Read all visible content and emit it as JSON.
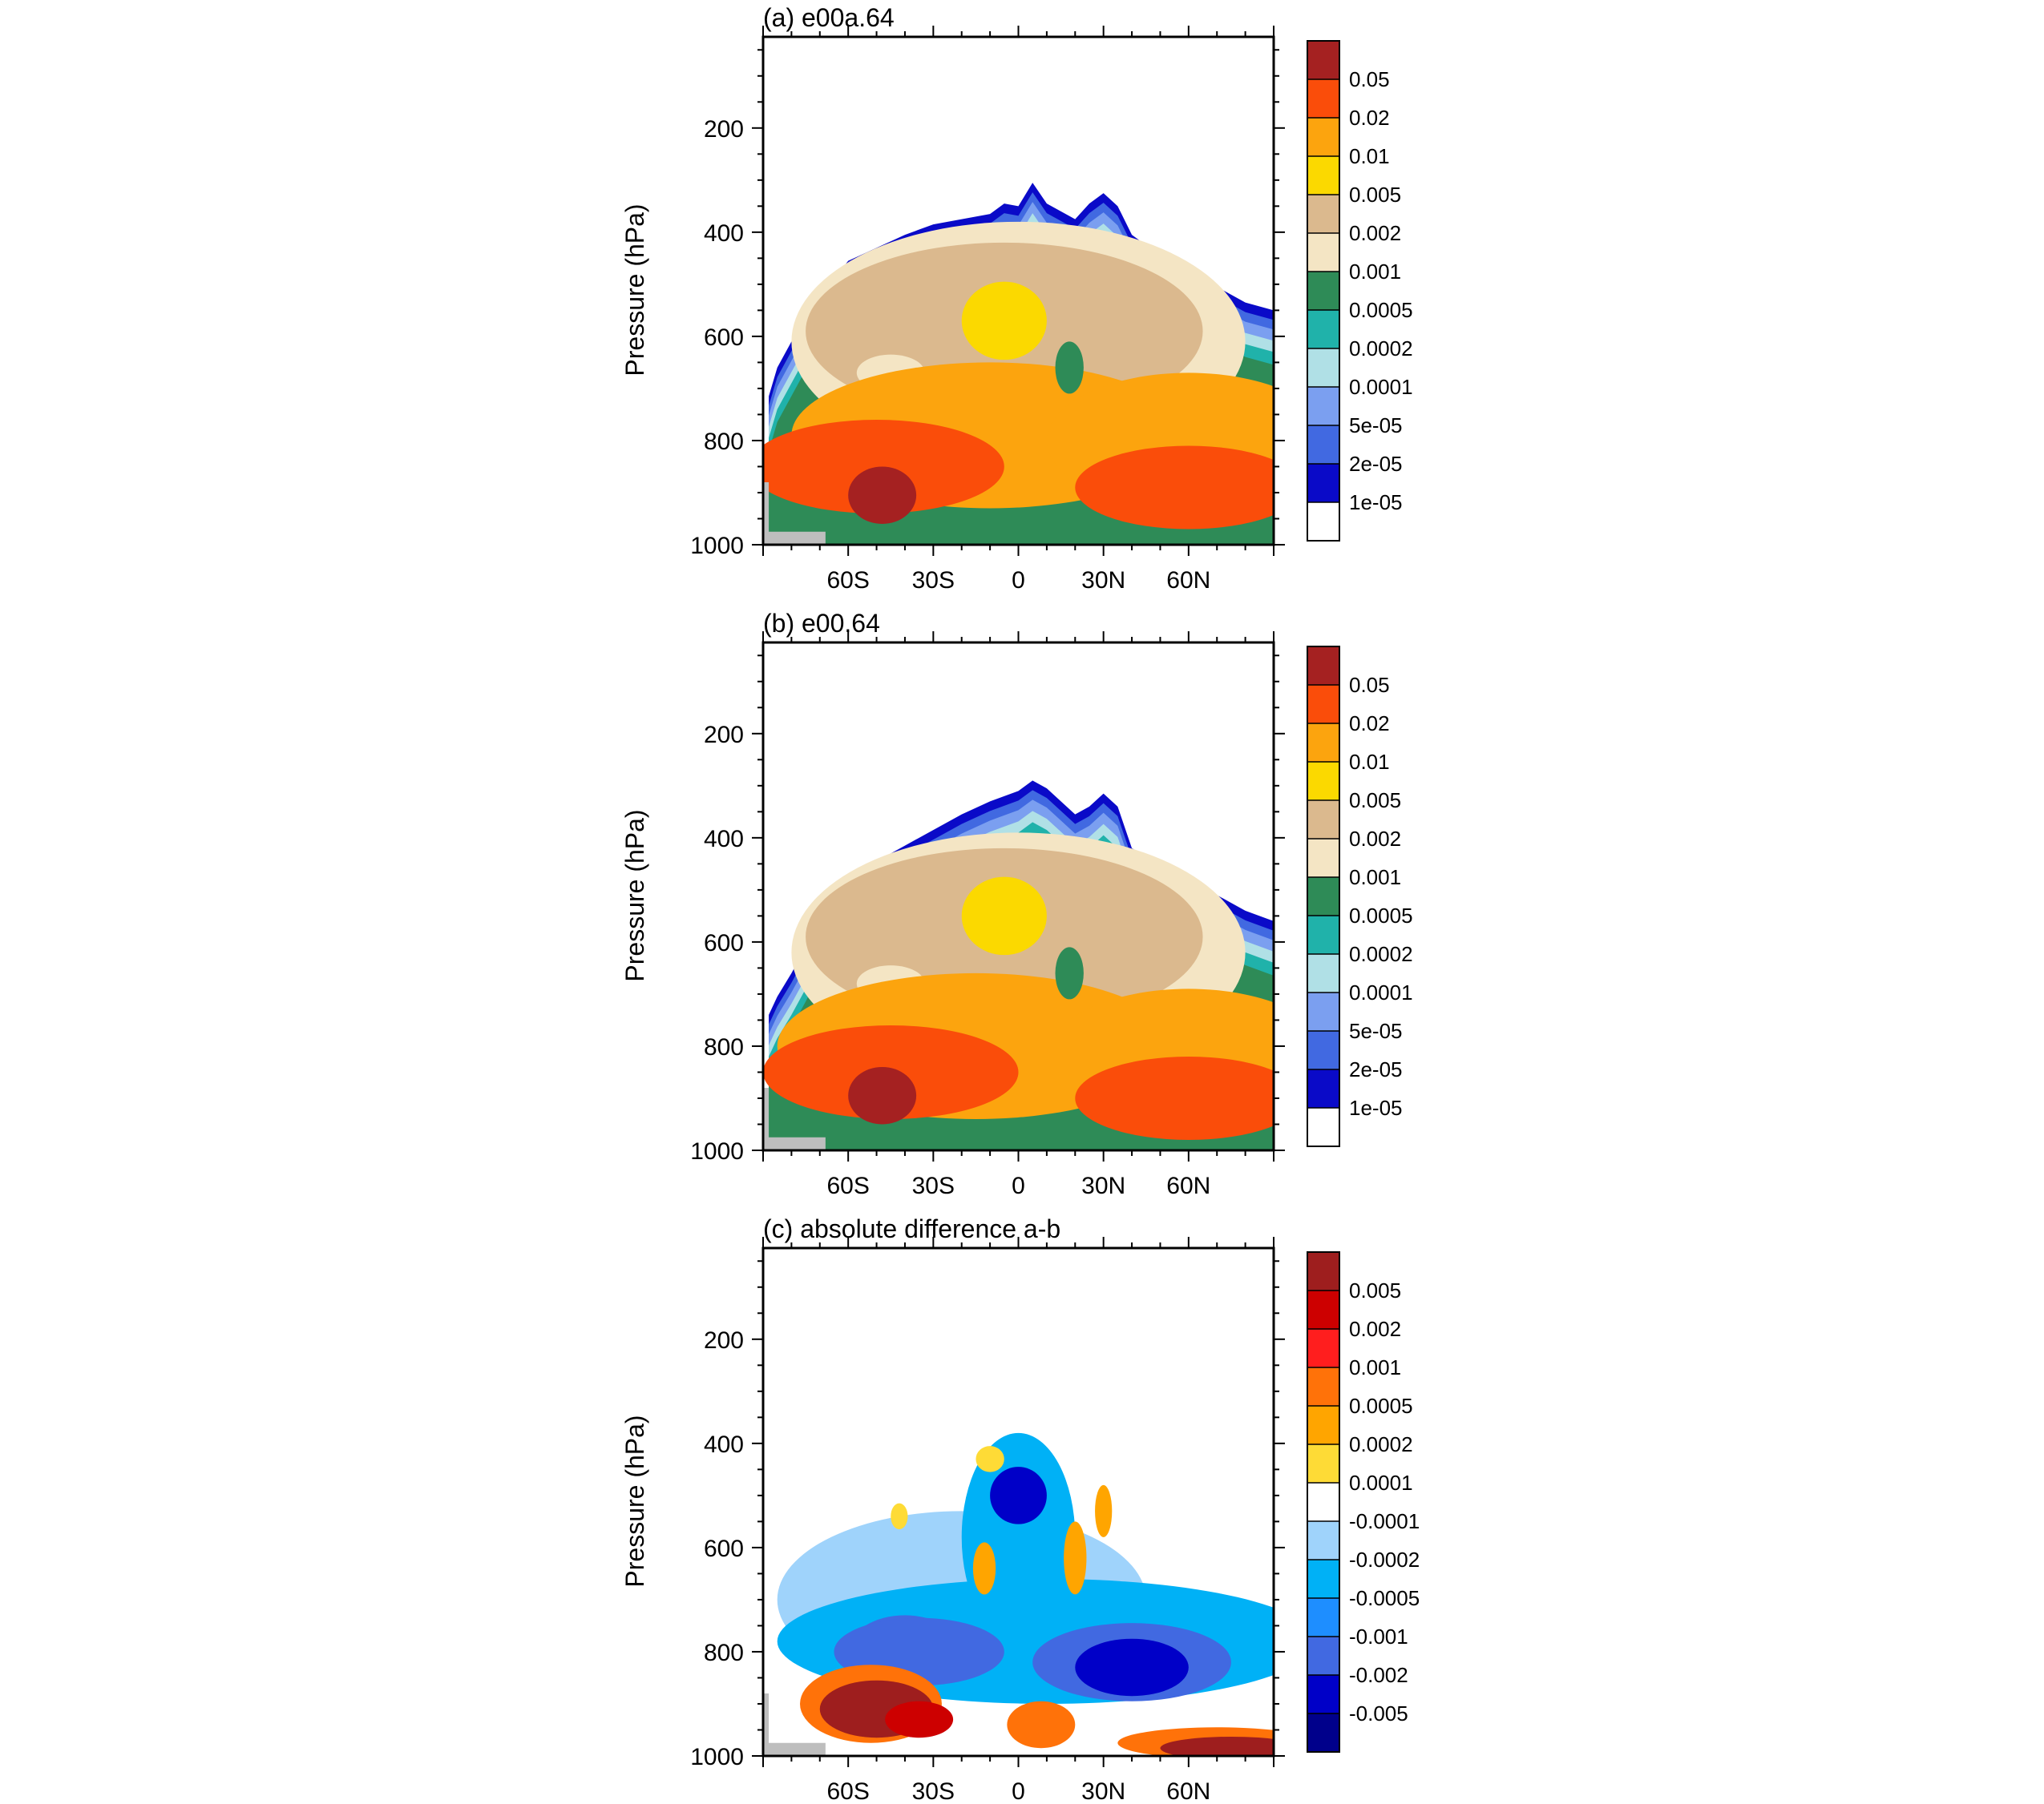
{
  "chart_data": [
    {
      "id": "a",
      "type": "contour",
      "title": "(a) e00a.64",
      "ylabel": "Pressure (hPa)",
      "yticks": [
        200,
        400,
        600,
        800,
        1000
      ],
      "ylim": [
        1000,
        25
      ],
      "y_scale": "linear, inverted",
      "xticks": [
        "60S",
        "30S",
        "0",
        "30N",
        "60N"
      ],
      "xtick_values": [
        -60,
        -30,
        0,
        30,
        60
      ],
      "xlim": [
        -90,
        90
      ],
      "colorbar": {
        "levels": [
          "0.05",
          "0.02",
          "0.01",
          "0.005",
          "0.002",
          "0.001",
          "0.0005",
          "0.0002",
          "0.0001",
          "5e-05",
          "2e-05",
          "1e-05"
        ],
        "colors": [
          "#a52121",
          "#fa4d0a",
          "#fca40e",
          "#fbd900",
          "#dbb98e",
          "#f4e5c4",
          "#2e8b57",
          "#20b2aa",
          "#b0e0e6",
          "#7b9ff0",
          "#4169e1",
          "#0a0ac8",
          "#ffffff"
        ]
      },
      "field": {
        "top_envelope": [
          [
            -88,
            715
          ],
          [
            -85,
            660
          ],
          [
            -80,
            610
          ],
          [
            -75,
            560
          ],
          [
            -70,
            515
          ],
          [
            -65,
            490
          ],
          [
            -60,
            455
          ],
          [
            -50,
            430
          ],
          [
            -40,
            405
          ],
          [
            -30,
            385
          ],
          [
            -20,
            375
          ],
          [
            -10,
            365
          ],
          [
            -5,
            345
          ],
          [
            0,
            350
          ],
          [
            5,
            305
          ],
          [
            10,
            345
          ],
          [
            20,
            375
          ],
          [
            25,
            345
          ],
          [
            30,
            325
          ],
          [
            35,
            350
          ],
          [
            40,
            405
          ],
          [
            50,
            445
          ],
          [
            60,
            475
          ],
          [
            70,
            505
          ],
          [
            80,
            535
          ],
          [
            90,
            550
          ]
        ],
        "blobs": [
          {
            "level": 5,
            "center": [
              0,
              610
            ],
            "radius": [
              80,
              230
            ]
          },
          {
            "level": 4,
            "center": [
              -5,
              590
            ],
            "radius": [
              70,
              170
            ]
          },
          {
            "level": 5,
            "center": [
              -45,
              670
            ],
            "radius": [
              12,
              35
            ]
          },
          {
            "level": 3,
            "center": [
              -5,
              570
            ],
            "radius": [
              15,
              75
            ]
          },
          {
            "level": 2,
            "center": [
              -10,
              790
            ],
            "radius": [
              70,
              140
            ]
          },
          {
            "level": 2,
            "center": [
              60,
              800
            ],
            "radius": [
              50,
              130
            ]
          },
          {
            "level": 1,
            "center": [
              -50,
              850
            ],
            "radius": [
              45,
              90
            ]
          },
          {
            "level": 1,
            "center": [
              60,
              890
            ],
            "radius": [
              40,
              80
            ]
          },
          {
            "level": 0,
            "center": [
              -48,
              905
            ],
            "radius": [
              12,
              55
            ]
          },
          {
            "level": 6,
            "center": [
              18,
              660
            ],
            "radius": [
              5,
              50
            ]
          }
        ]
      }
    },
    {
      "id": "b",
      "type": "contour",
      "title": "(b) e00.64",
      "ylabel": "Pressure (hPa)",
      "yticks": [
        200,
        400,
        600,
        800,
        1000
      ],
      "ylim": [
        1000,
        25
      ],
      "y_scale": "linear, inverted",
      "xticks": [
        "60S",
        "30S",
        "0",
        "30N",
        "60N"
      ],
      "xtick_values": [
        -60,
        -30,
        0,
        30,
        60
      ],
      "xlim": [
        -90,
        90
      ],
      "colorbar": {
        "levels": [
          "0.05",
          "0.02",
          "0.01",
          "0.005",
          "0.002",
          "0.001",
          "0.0005",
          "0.0002",
          "0.0001",
          "5e-05",
          "2e-05",
          "1e-05"
        ],
        "colors": [
          "#a52121",
          "#fa4d0a",
          "#fca40e",
          "#fbd900",
          "#dbb98e",
          "#f4e5c4",
          "#2e8b57",
          "#20b2aa",
          "#b0e0e6",
          "#7b9ff0",
          "#4169e1",
          "#0a0ac8",
          "#ffffff"
        ]
      },
      "field": {
        "top_envelope": [
          [
            -88,
            740
          ],
          [
            -85,
            705
          ],
          [
            -80,
            660
          ],
          [
            -75,
            610
          ],
          [
            -70,
            555
          ],
          [
            -65,
            510
          ],
          [
            -60,
            470
          ],
          [
            -50,
            445
          ],
          [
            -40,
            415
          ],
          [
            -30,
            385
          ],
          [
            -20,
            355
          ],
          [
            -10,
            330
          ],
          [
            0,
            310
          ],
          [
            5,
            290
          ],
          [
            10,
            305
          ],
          [
            20,
            355
          ],
          [
            25,
            340
          ],
          [
            30,
            315
          ],
          [
            35,
            340
          ],
          [
            40,
            420
          ],
          [
            50,
            450
          ],
          [
            60,
            480
          ],
          [
            70,
            510
          ],
          [
            80,
            540
          ],
          [
            90,
            560
          ]
        ],
        "blobs": [
          {
            "level": 5,
            "center": [
              0,
              620
            ],
            "radius": [
              80,
              230
            ]
          },
          {
            "level": 4,
            "center": [
              -5,
              590
            ],
            "radius": [
              70,
              170
            ]
          },
          {
            "level": 5,
            "center": [
              -45,
              680
            ],
            "radius": [
              12,
              35
            ]
          },
          {
            "level": 3,
            "center": [
              -5,
              550
            ],
            "radius": [
              15,
              75
            ]
          },
          {
            "level": 2,
            "center": [
              -15,
              800
            ],
            "radius": [
              70,
              140
            ]
          },
          {
            "level": 2,
            "center": [
              60,
              820
            ],
            "radius": [
              50,
              130
            ]
          },
          {
            "level": 1,
            "center": [
              -45,
              850
            ],
            "radius": [
              45,
              90
            ]
          },
          {
            "level": 1,
            "center": [
              60,
              900
            ],
            "radius": [
              40,
              80
            ]
          },
          {
            "level": 0,
            "center": [
              -48,
              895
            ],
            "radius": [
              12,
              55
            ]
          },
          {
            "level": 6,
            "center": [
              18,
              660
            ],
            "radius": [
              5,
              50
            ]
          }
        ]
      }
    },
    {
      "id": "c",
      "type": "contour",
      "title": "(c) absolute difference a-b",
      "ylabel": "Pressure (hPa)",
      "yticks": [
        200,
        400,
        600,
        800,
        1000
      ],
      "ylim": [
        1000,
        25
      ],
      "y_scale": "linear, inverted",
      "xticks": [
        "60S",
        "30S",
        "0",
        "30N",
        "60N"
      ],
      "xtick_values": [
        -60,
        -30,
        0,
        30,
        60
      ],
      "xlim": [
        -90,
        90
      ],
      "colorbar": {
        "levels": [
          "0.005",
          "0.002",
          "0.001",
          "0.0005",
          "0.0002",
          "0.0001",
          "-0.0001",
          "-0.0002",
          "-0.0005",
          "-0.001",
          "-0.002",
          "-0.005"
        ],
        "colors": [
          "#9e1e1e",
          "#cd0000",
          "#ff1e1e",
          "#ff7209",
          "#ffa500",
          "#fedb36",
          "#ffffff",
          "#9fd3fb",
          "#00b1f6",
          "#1e8eff",
          "#4169e1",
          "#0000c8",
          "#00008b"
        ]
      },
      "field": {
        "blobs": [
          {
            "level": 7,
            "center": [
              -20,
              700
            ],
            "radius": [
              65,
              170
            ]
          },
          {
            "level": 8,
            "center": [
              0,
              580
            ],
            "radius": [
              20,
              200
            ]
          },
          {
            "level": 8,
            "center": [
              10,
              780
            ],
            "radius": [
              95,
              120
            ]
          },
          {
            "level": 10,
            "center": [
              -40,
              800
            ],
            "radius": [
              20,
              70
            ]
          },
          {
            "level": 10,
            "center": [
              40,
              820
            ],
            "radius": [
              35,
              75
            ]
          },
          {
            "level": 11,
            "center": [
              0,
              500
            ],
            "radius": [
              10,
              55
            ]
          },
          {
            "level": 10,
            "center": [
              -35,
              800
            ],
            "radius": [
              30,
              65
            ]
          },
          {
            "level": 11,
            "center": [
              40,
              830
            ],
            "radius": [
              20,
              55
            ]
          },
          {
            "level": 3,
            "center": [
              -52,
              900
            ],
            "radius": [
              25,
              75
            ]
          },
          {
            "level": 0,
            "center": [
              -50,
              910
            ],
            "radius": [
              20,
              55
            ]
          },
          {
            "level": 1,
            "center": [
              -35,
              930
            ],
            "radius": [
              12,
              35
            ]
          },
          {
            "level": 3,
            "center": [
              8,
              940
            ],
            "radius": [
              12,
              45
            ]
          },
          {
            "level": 3,
            "center": [
              70,
              975
            ],
            "radius": [
              35,
              30
            ]
          },
          {
            "level": 0,
            "center": [
              75,
              985
            ],
            "radius": [
              25,
              22
            ]
          },
          {
            "level": 5,
            "center": [
              -42,
              540
            ],
            "radius": [
              3,
              25
            ]
          },
          {
            "level": 4,
            "center": [
              -12,
              640
            ],
            "radius": [
              4,
              50
            ]
          },
          {
            "level": 4,
            "center": [
              20,
              620
            ],
            "radius": [
              4,
              70
            ]
          },
          {
            "level": 4,
            "center": [
              30,
              530
            ],
            "radius": [
              3,
              50
            ]
          },
          {
            "level": 5,
            "center": [
              -10,
              430
            ],
            "radius": [
              5,
              25
            ]
          }
        ]
      }
    }
  ]
}
